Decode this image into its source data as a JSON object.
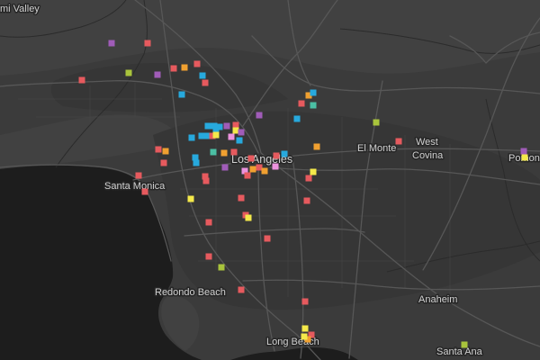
{
  "map": {
    "labels": {
      "simi_valley": "mi Valley",
      "santa_monica": "Santa Monica",
      "los_angeles": "Los Angeles",
      "el_monte": "El Monte",
      "west_covina": [
        "West",
        "Covina"
      ],
      "pomona": "Pomon",
      "redondo_beach": "Redondo Beach",
      "anaheim": "Anaheim",
      "long_beach": "Long Beach",
      "santa_ana": "Santa Ana"
    },
    "colors": {
      "land": "#3b3b3b",
      "land_light": "#414141",
      "land_urban": "#363636",
      "water": "#1d1d1d",
      "road": "#575757",
      "road_minor": "#474747",
      "boundary": "#2b2b2b",
      "label": "#d0d0d0",
      "label_halo": "#262626"
    },
    "marker_colors": {
      "red": "#e65a5e",
      "orange": "#f0a030",
      "blue": "#27a9dd",
      "purple": "#a05cb8",
      "green": "#a9c43c",
      "yellow": "#f4e94a",
      "pink": "#ec93de",
      "teal": "#4bbfa4"
    }
  }
}
